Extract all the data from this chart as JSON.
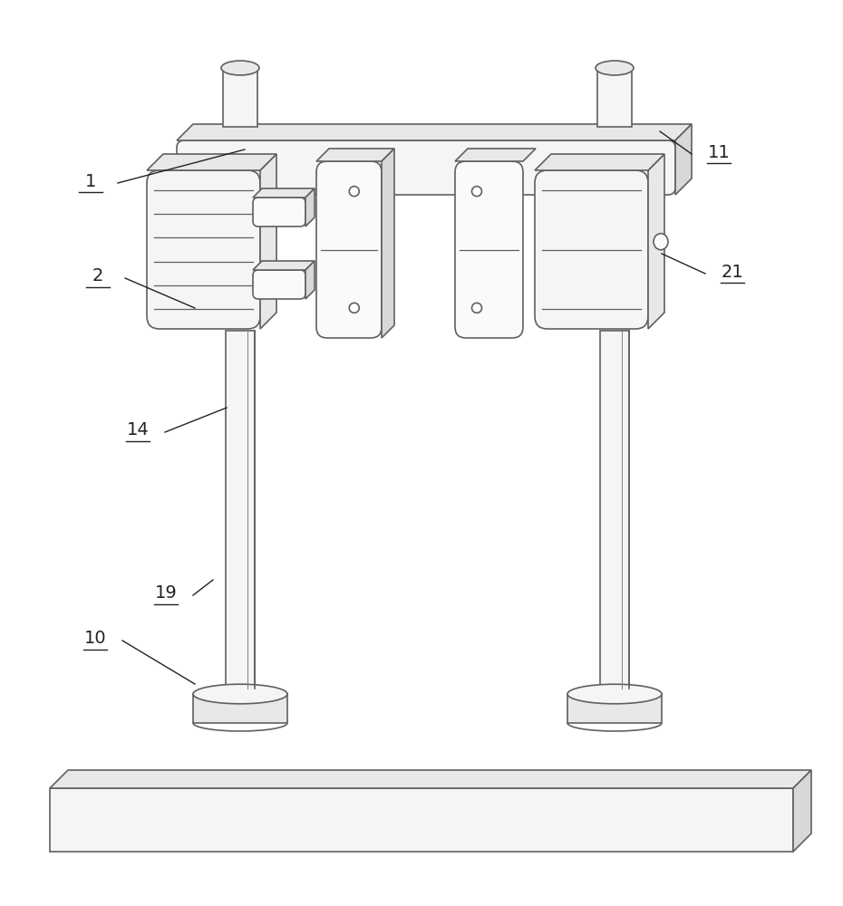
{
  "bg_color": "#ffffff",
  "lc": "#606060",
  "lw": 1.2,
  "lc_thin": "#808080",
  "lw_thin": 0.8,
  "fc_light": "#f5f5f5",
  "fc_mid": "#e8e8e8",
  "fc_dark": "#d8d8d8",
  "fc_white": "#fafafa"
}
